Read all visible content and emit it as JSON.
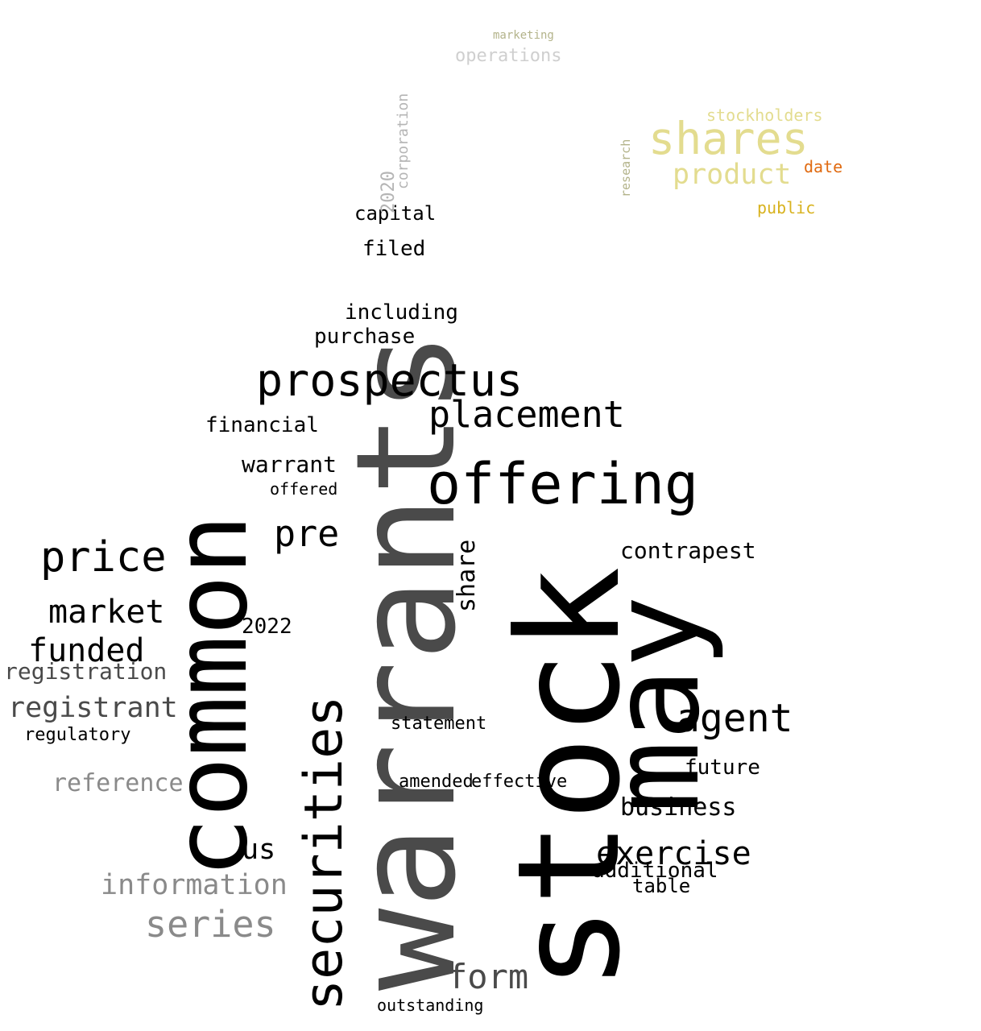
{
  "palette": {
    "black": "#000000",
    "dark_gray": "#4a4a4a",
    "mid_gray": "#8a8a8a",
    "light_gray": "#b5b5b5",
    "pale_gray": "#cfcfcf",
    "olive": "#b3b38a",
    "khaki": "#e3dc8f",
    "yellow": "#f2e85a",
    "orange": "#f28a1a",
    "deep_orange": "#e06a10",
    "gold": "#d8b21e"
  },
  "words": [
    "stock",
    "warrants",
    "may",
    "common",
    "offering",
    "securities",
    "prospectus",
    "placement",
    "price",
    "agent",
    "exercise",
    "series",
    "information",
    "form",
    "pre",
    "market",
    "funded",
    "shares",
    "product",
    "contrapest",
    "registrant",
    "registration",
    "reference",
    "business",
    "us",
    "offered",
    "financial",
    "warrant",
    "including",
    "purchase",
    "additional",
    "capital",
    "filed",
    "2022",
    "future",
    "share",
    "table",
    "regulatory",
    "outstanding",
    "stockholders",
    "operations",
    "date",
    "public",
    "marketing",
    "2020",
    "corporation",
    "research",
    "amended",
    "effective",
    "statement"
  ]
}
